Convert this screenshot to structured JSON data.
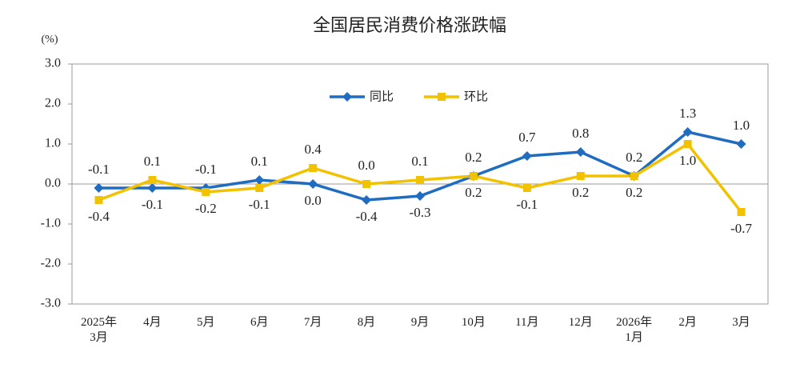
{
  "chart_data": {
    "type": "line",
    "title": "全国居民消费价格涨跌幅",
    "y_label": "(%)",
    "categories": [
      "2025年3月",
      "4月",
      "5月",
      "6月",
      "7月",
      "8月",
      "9月",
      "10月",
      "11月",
      "12月",
      "2026年1月",
      "2月",
      "3月"
    ],
    "series": [
      {
        "name": "同比",
        "color": "#1f6cc0",
        "marker": "diamond",
        "values": [
          -0.1,
          -0.1,
          -0.1,
          0.1,
          0.0,
          -0.4,
          -0.3,
          0.2,
          0.7,
          0.8,
          0.2,
          1.3,
          1.0
        ],
        "value_labels": [
          "-0.1",
          "-0.1",
          "-0.1",
          "0.1",
          "0.0",
          "-0.4",
          "-0.3",
          "0.2",
          "0.7",
          "0.8",
          "0.2",
          "1.3",
          "1.0"
        ]
      },
      {
        "name": "环比",
        "color": "#f2c200",
        "marker": "square",
        "values": [
          -0.4,
          0.1,
          -0.2,
          -0.1,
          0.4,
          0.0,
          0.1,
          0.2,
          -0.1,
          0.2,
          0.2,
          1.0,
          -0.7
        ],
        "value_labels": [
          "-0.4",
          "0.1",
          "-0.2",
          "-0.1",
          "0.4",
          "0.0",
          "0.1",
          "0.2",
          "-0.1",
          "0.2",
          "0.2",
          "1.0",
          "-0.7"
        ]
      }
    ],
    "ylim": [
      -3,
      3
    ],
    "yticks": [
      {
        "value": -3,
        "label": "-3.0"
      },
      {
        "value": -2,
        "label": "-2.0"
      },
      {
        "value": -1,
        "label": "-1.0"
      },
      {
        "value": 0,
        "label": "0.0"
      },
      {
        "value": 1,
        "label": "1.0"
      },
      {
        "value": 2,
        "label": "2.0"
      },
      {
        "value": 3,
        "label": "3.0"
      }
    ],
    "legend": "top"
  }
}
